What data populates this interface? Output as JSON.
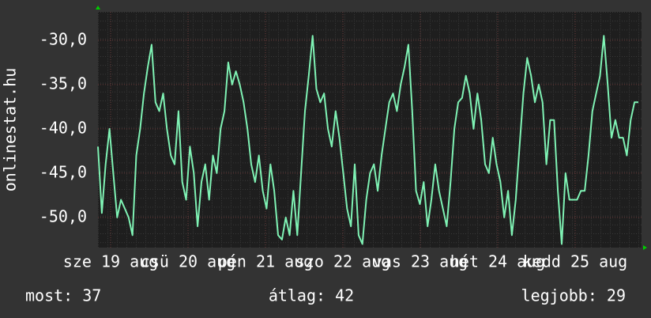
{
  "chart_data": {
    "type": "line",
    "y_label": "onlinestat.hu",
    "x_labels": [
      "sze 19 aug",
      "csü 20 aug",
      "pén 21 aug",
      "szo 22 aug",
      "vas 23 aug",
      "hét 24 aug",
      "kedd 25 aug"
    ],
    "ylim": [
      -53.4,
      -26.8
    ],
    "yticks": [
      {
        "value": -30,
        "label": "-30,0"
      },
      {
        "value": -35,
        "label": "-35,0"
      },
      {
        "value": -40,
        "label": "-40,0"
      },
      {
        "value": -45,
        "label": "-45,0"
      },
      {
        "value": -50,
        "label": "-50,0"
      }
    ],
    "grid": true,
    "series": [
      {
        "color": "#7ff2b4",
        "values": [
          -42,
          -49.5,
          -44,
          -40,
          -45,
          -50,
          -48,
          -49,
          -50,
          -52,
          -43,
          -40,
          -36,
          -33,
          -30.5,
          -37,
          -38,
          -36,
          -40,
          -43,
          -44,
          -38,
          -46,
          -48,
          -42,
          -45,
          -51,
          -46,
          -44,
          -48,
          -43,
          -45,
          -40,
          -38,
          -32.5,
          -35,
          -33.5,
          -35,
          -37,
          -40,
          -44,
          -46,
          -43,
          -47,
          -49,
          -44,
          -47,
          -52,
          -52.5,
          -50,
          -52,
          -47,
          -52,
          -45,
          -38,
          -34,
          -29.5,
          -35.5,
          -37,
          -36,
          -40,
          -42,
          -38,
          -41,
          -45,
          -49,
          -51,
          -44,
          -52,
          -53,
          -48,
          -45,
          -44,
          -47,
          -43,
          -40,
          -37,
          -36,
          -38,
          -35,
          -33,
          -30.5,
          -38,
          -47,
          -48.5,
          -46,
          -51,
          -48,
          -44,
          -47,
          -49,
          -51,
          -46,
          -40,
          -37,
          -36.5,
          -34,
          -36,
          -40,
          -36,
          -39,
          -44,
          -45,
          -41,
          -44,
          -46,
          -50,
          -47,
          -52,
          -48,
          -42,
          -36,
          -32,
          -34,
          -37,
          -35,
          -37,
          -44,
          -39,
          -39,
          -47,
          -53,
          -45,
          -48,
          -48,
          -48,
          -47,
          -47,
          -43,
          -38,
          -36,
          -34,
          -29.5,
          -35,
          -41,
          -39,
          -41,
          -41,
          -43,
          -39,
          -37,
          -37
        ]
      }
    ],
    "footer": [
      "most: 37",
      "átlag: 42",
      "legjobb: 29"
    ]
  }
}
